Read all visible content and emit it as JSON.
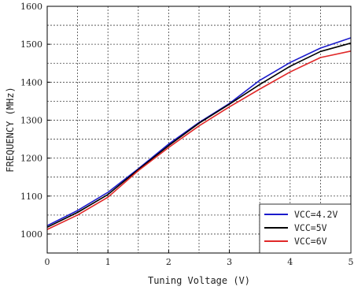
{
  "chart_data": {
    "type": "line",
    "xlabel": "Tuning Voltage (V)",
    "ylabel": "FREQUENCY (MHz)",
    "xlim": [
      0,
      5
    ],
    "ylim": [
      950,
      1600
    ],
    "x_ticks": [
      "0",
      "1",
      "2",
      "3",
      "4",
      "5"
    ],
    "y_ticks": [
      "1000",
      "1100",
      "1200",
      "1300",
      "1400",
      "1500",
      "1600"
    ],
    "x_grid_values": [
      0.5,
      1,
      1.5,
      2,
      2.5,
      3,
      3.5,
      4,
      4.5
    ],
    "y_grid_values": [
      1000,
      1050,
      1100,
      1150,
      1200,
      1250,
      1300,
      1350,
      1400,
      1450,
      1500,
      1550
    ],
    "grid": true,
    "legend_position": "bottom-right",
    "x": [
      0,
      0.5,
      1,
      1.5,
      2,
      2.5,
      3,
      3.5,
      4,
      4.5,
      5
    ],
    "series": [
      {
        "name": "VCC=4.2V",
        "color": "#1a1acc",
        "values": [
          1022,
          1062,
          1110,
          1172,
          1237,
          1294,
          1344,
          1405,
          1452,
          1490,
          1517
        ]
      },
      {
        "name": "VCC=5V",
        "color": "#000000",
        "values": [
          1018,
          1057,
          1104,
          1170,
          1233,
          1292,
          1342,
          1394,
          1442,
          1481,
          1503
        ]
      },
      {
        "name": "VCC=6V",
        "color": "#e02828",
        "values": [
          1012,
          1050,
          1097,
          1167,
          1228,
          1285,
          1335,
          1382,
          1427,
          1465,
          1482
        ]
      }
    ]
  }
}
